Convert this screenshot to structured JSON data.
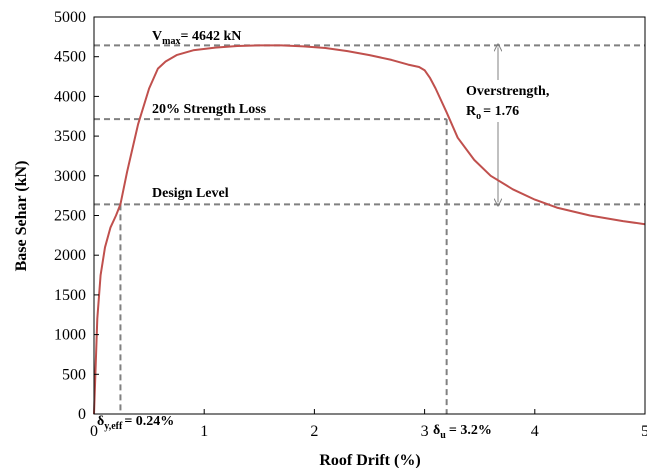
{
  "chart_data": {
    "type": "line",
    "xlabel": "Roof Drift (%)",
    "ylabel": "Base Sehar (kN)",
    "xlim": [
      0,
      5
    ],
    "ylim": [
      0,
      5000
    ],
    "x_ticks": [
      "0",
      "1",
      "2",
      "3",
      "4",
      "5"
    ],
    "y_ticks": [
      "0",
      "500",
      "1000",
      "1500",
      "2000",
      "2500",
      "3000",
      "3500",
      "4000",
      "4500",
      "5000"
    ],
    "grid": false,
    "series_color": "#c0504d",
    "reference_color": "#808080",
    "series": [
      {
        "x": [
          0,
          0.03,
          0.06,
          0.1,
          0.15,
          0.2,
          0.24,
          0.3,
          0.4,
          0.5,
          0.58,
          0.65,
          0.75,
          0.9,
          1.1,
          1.3,
          1.5,
          1.7,
          1.9,
          2.1,
          2.3,
          2.5,
          2.7,
          2.85,
          2.95,
          3.0,
          3.05,
          3.1,
          3.2,
          3.3,
          3.45,
          3.6,
          3.8,
          4.0,
          4.2,
          4.5,
          4.8,
          5.0
        ],
        "y": [
          0,
          1200,
          1750,
          2100,
          2350,
          2500,
          2640,
          3050,
          3650,
          4100,
          4350,
          4440,
          4520,
          4580,
          4615,
          4635,
          4642,
          4642,
          4630,
          4610,
          4570,
          4520,
          4460,
          4400,
          4370,
          4330,
          4230,
          4100,
          3800,
          3480,
          3200,
          3000,
          2830,
          2700,
          2600,
          2500,
          2430,
          2390
        ]
      }
    ],
    "reference_lines": {
      "horizontal": [
        4642,
        3714,
        2640
      ],
      "vertical": [
        0.24,
        3.2
      ]
    },
    "annotations": {
      "vmax_prefix": "V",
      "vmax_sub": "max",
      "vmax_suffix": "= 4642 kN",
      "strength_loss": "20% Strength Loss",
      "design_level": "Design Level",
      "overstrength_line1": "Overstrength,",
      "overstrength_r": "R",
      "overstrength_sub": "o",
      "overstrength_value": "= 1.76",
      "dy_prefix": "δ",
      "dy_sub": "y,eff",
      "dy_value": "= 0.24%",
      "du_prefix": "δ",
      "du_sub": "u",
      "du_value": "= 3.2%"
    }
  }
}
